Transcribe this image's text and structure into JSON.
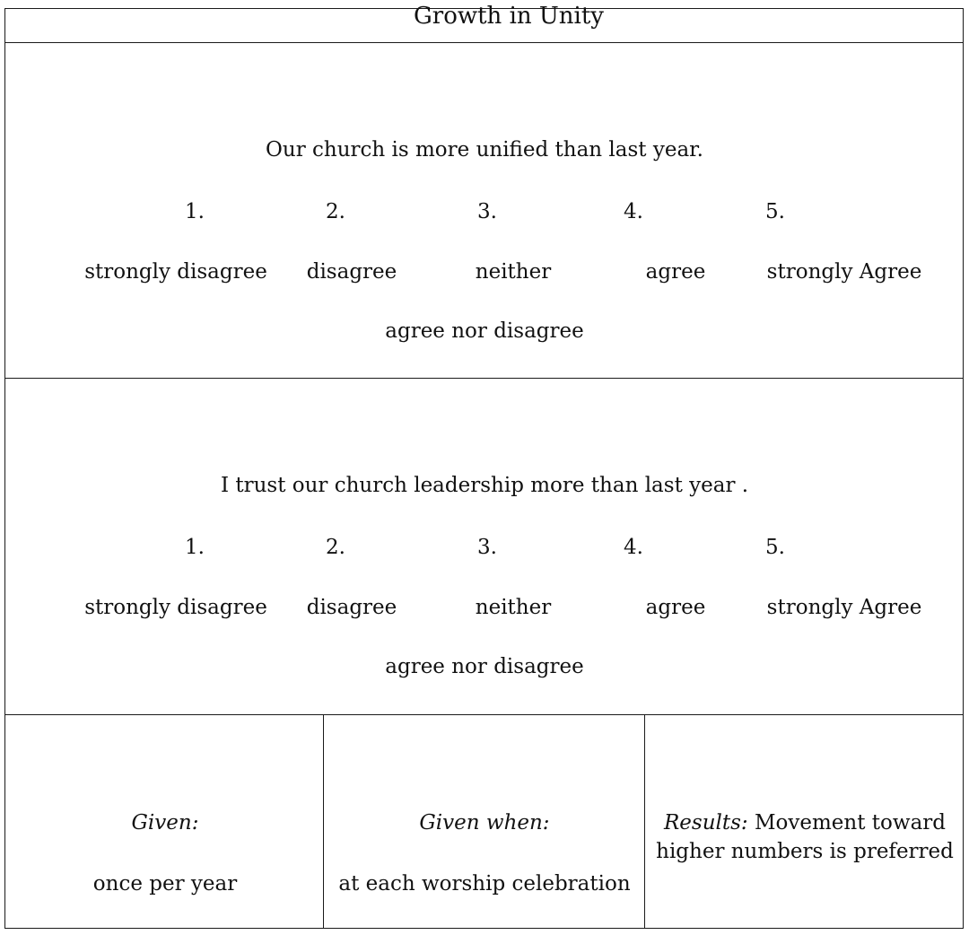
{
  "title": "Growth in Unity",
  "questions": [
    {
      "text": "Our church is more unified than last year.",
      "scale": [
        {
          "number": "1.",
          "label": "strongly disagree"
        },
        {
          "number": "2.",
          "label": "disagree"
        },
        {
          "number": "3.",
          "label": "neither"
        },
        {
          "number": "4.",
          "label": "agree"
        },
        {
          "number": "5.",
          "label": "strongly Agree"
        }
      ],
      "neutral_continuation": "agree nor disagree"
    },
    {
      "text": "I trust our church leadership more than last year .",
      "scale": [
        {
          "number": "1.",
          "label": "strongly disagree"
        },
        {
          "number": "2.",
          "label": "disagree"
        },
        {
          "number": "3.",
          "label": "neither"
        },
        {
          "number": "4.",
          "label": "agree"
        },
        {
          "number": "5.",
          "label": "strongly Agree"
        }
      ],
      "neutral_continuation": "agree nor disagree"
    }
  ],
  "footer": {
    "given": {
      "heading": "Given:",
      "value": "once per year"
    },
    "given_when": {
      "heading": "Given when:",
      "value": "at each worship celebration"
    },
    "results": {
      "heading": "Results:",
      "value": "Movement toward higher numbers is preferred"
    }
  }
}
